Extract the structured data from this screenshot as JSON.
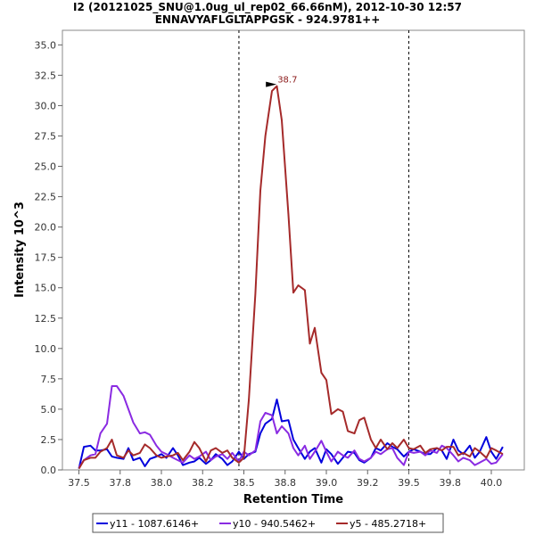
{
  "chart_data": {
    "type": "line",
    "title_line1": "I2 (20121025_SNU@1.0ug_ul_rep02_66.66nM), 2012-10-30 12:57",
    "title_line2": "ENNAVYAFLGLTAPPGSK - 924.9781++",
    "xlabel": "Retention Time",
    "ylabel": "Intensity 10^3",
    "xlim": [
      37.4,
      40.2
    ],
    "ylim": [
      0,
      36.2
    ],
    "x_ticks": [
      "37.5",
      "37.8",
      "38.0",
      "38.2",
      "38.5",
      "38.8",
      "39.0",
      "39.2",
      "39.5",
      "39.8",
      "40.0"
    ],
    "x_tick_values": [
      37.5,
      37.75,
      38.0,
      38.25,
      38.5,
      38.75,
      39.0,
      39.25,
      39.5,
      39.75,
      40.0
    ],
    "y_ticks": [
      "0.0",
      "2.5",
      "5.0",
      "7.5",
      "10.0",
      "12.5",
      "15.0",
      "17.5",
      "20.0",
      "22.5",
      "25.0",
      "27.5",
      "30.0",
      "32.5",
      "35.0"
    ],
    "y_tick_values": [
      0,
      2.5,
      5,
      7.5,
      10,
      12.5,
      15,
      17.5,
      20,
      22.5,
      25,
      27.5,
      30,
      32.5,
      35
    ],
    "boundaries": [
      38.47,
      39.5
    ],
    "annotation": {
      "text": "38.7",
      "x": 38.72,
      "y": 31.6,
      "color": "#8b1a1a"
    },
    "legend": {
      "placement": "bottom"
    },
    "series": [
      {
        "name": "y11 - 1087.6146+",
        "color": "#0000dd",
        "x": [
          37.5,
          37.53,
          37.57,
          37.6,
          37.63,
          37.67,
          37.7,
          37.73,
          37.77,
          37.8,
          37.83,
          37.87,
          37.9,
          37.93,
          37.97,
          38.0,
          38.03,
          38.07,
          38.1,
          38.13,
          38.17,
          38.2,
          38.23,
          38.27,
          38.3,
          38.33,
          38.37,
          38.4,
          38.43,
          38.47,
          38.5,
          38.53,
          38.57,
          38.6,
          38.63,
          38.67,
          38.7,
          38.73,
          38.77,
          38.8,
          38.83,
          38.87,
          38.9,
          38.93,
          38.97,
          39.0,
          39.03,
          39.07,
          39.1,
          39.13,
          39.17,
          39.2,
          39.23,
          39.27,
          39.3,
          39.33,
          39.37,
          39.4,
          39.43,
          39.47,
          39.5,
          39.53,
          39.57,
          39.6,
          39.63,
          39.67,
          39.7,
          39.73,
          39.77,
          39.8,
          39.83,
          39.87,
          39.9,
          39.93,
          39.97,
          40.0,
          40.03,
          40.07
        ],
        "values": [
          0.1,
          1.9,
          2.0,
          1.6,
          1.6,
          1.7,
          1.1,
          1.0,
          0.9,
          1.8,
          0.8,
          1.0,
          0.3,
          0.9,
          1.1,
          1.3,
          1.0,
          1.8,
          1.2,
          0.4,
          0.6,
          0.7,
          1.0,
          0.5,
          0.8,
          1.3,
          0.9,
          0.4,
          0.7,
          1.5,
          0.9,
          1.3,
          1.5,
          3.0,
          3.8,
          4.2,
          5.8,
          4.0,
          4.1,
          2.5,
          1.8,
          0.9,
          1.5,
          1.8,
          0.6,
          1.7,
          1.3,
          0.5,
          1.0,
          1.5,
          1.4,
          0.8,
          0.6,
          1.0,
          1.8,
          1.6,
          2.2,
          1.9,
          1.7,
          1.1,
          1.5,
          1.7,
          1.5,
          1.3,
          1.3,
          1.8,
          1.6,
          0.9,
          2.5,
          1.6,
          1.3,
          2.0,
          1.0,
          1.5,
          2.7,
          1.5,
          0.9,
          1.9
        ]
      },
      {
        "name": "y10 - 940.5462+",
        "color": "#8a2be2",
        "x": [
          37.5,
          37.53,
          37.57,
          37.6,
          37.63,
          37.67,
          37.7,
          37.73,
          37.77,
          37.8,
          37.83,
          37.87,
          37.9,
          37.93,
          37.97,
          38.0,
          38.03,
          38.07,
          38.1,
          38.13,
          38.17,
          38.2,
          38.23,
          38.27,
          38.3,
          38.33,
          38.37,
          38.4,
          38.43,
          38.47,
          38.5,
          38.53,
          38.57,
          38.6,
          38.63,
          38.67,
          38.7,
          38.73,
          38.77,
          38.8,
          38.83,
          38.87,
          38.9,
          38.93,
          38.97,
          39.0,
          39.03,
          39.07,
          39.1,
          39.13,
          39.17,
          39.2,
          39.23,
          39.27,
          39.3,
          39.33,
          39.37,
          39.4,
          39.43,
          39.47,
          39.5,
          39.53,
          39.57,
          39.6,
          39.63,
          39.67,
          39.7,
          39.73,
          39.77,
          39.8,
          39.83,
          39.87,
          39.9,
          39.93,
          39.97,
          40.0,
          40.03,
          40.07
        ],
        "values": [
          0.2,
          0.8,
          1.2,
          1.3,
          3.0,
          3.8,
          6.9,
          6.9,
          6.1,
          5.0,
          3.9,
          3.0,
          3.1,
          2.9,
          2.0,
          1.5,
          1.3,
          1.0,
          0.8,
          0.6,
          1.2,
          0.9,
          1.1,
          1.5,
          0.8,
          1.1,
          1.3,
          0.9,
          1.4,
          0.7,
          1.5,
          1.2,
          1.6,
          4.0,
          4.7,
          4.5,
          3.0,
          3.6,
          3.0,
          1.8,
          1.2,
          2.0,
          0.9,
          1.5,
          2.4,
          1.5,
          0.7,
          1.5,
          1.2,
          1.0,
          1.6,
          0.9,
          0.7,
          1.0,
          1.5,
          1.3,
          1.7,
          1.8,
          1.0,
          0.4,
          1.5,
          1.4,
          1.5,
          1.2,
          1.6,
          1.4,
          2.0,
          1.8,
          1.2,
          0.7,
          1.0,
          0.8,
          0.4,
          0.6,
          0.9,
          0.5,
          0.6,
          1.3
        ]
      },
      {
        "name": "y5 - 485.2718+",
        "color": "#a52a2a",
        "x": [
          37.5,
          37.53,
          37.57,
          37.6,
          37.63,
          37.67,
          37.7,
          37.73,
          37.77,
          37.8,
          37.83,
          37.87,
          37.9,
          37.93,
          37.97,
          38.0,
          38.03,
          38.07,
          38.1,
          38.13,
          38.17,
          38.2,
          38.23,
          38.27,
          38.3,
          38.33,
          38.37,
          38.4,
          38.43,
          38.47,
          38.5,
          38.53,
          38.57,
          38.6,
          38.63,
          38.67,
          38.7,
          38.73,
          38.77,
          38.8,
          38.83,
          38.87,
          38.9,
          38.93,
          38.97,
          39.0,
          39.03,
          39.07,
          39.1,
          39.13,
          39.17,
          39.2,
          39.23,
          39.27,
          39.3,
          39.33,
          39.37,
          39.4,
          39.43,
          39.47,
          39.5,
          39.53,
          39.57,
          39.6,
          39.63,
          39.67,
          39.7,
          39.73,
          39.77,
          39.8,
          39.83,
          39.87,
          39.9,
          39.93,
          39.97,
          40.0,
          40.03,
          40.07
        ],
        "values": [
          0.1,
          0.8,
          1.0,
          1.0,
          1.5,
          1.8,
          2.5,
          1.2,
          1.0,
          1.6,
          1.2,
          1.4,
          2.1,
          1.8,
          1.2,
          1.0,
          1.1,
          1.2,
          1.4,
          0.8,
          1.5,
          2.3,
          1.8,
          0.7,
          1.6,
          1.8,
          1.4,
          1.6,
          1.0,
          0.6,
          1.0,
          5.8,
          14.5,
          23.0,
          27.5,
          31.2,
          31.6,
          28.8,
          21.0,
          14.6,
          15.2,
          14.8,
          10.4,
          11.7,
          8.0,
          7.4,
          4.6,
          5.0,
          4.8,
          3.2,
          3.0,
          4.1,
          4.3,
          2.5,
          1.8,
          2.5,
          1.7,
          2.2,
          1.8,
          2.5,
          1.8,
          1.7,
          2.0,
          1.4,
          1.7,
          1.8,
          1.6,
          1.9,
          1.9,
          1.2,
          1.4,
          1.1,
          1.8,
          1.5,
          1.0,
          1.8,
          1.6,
          1.3
        ]
      }
    ]
  }
}
